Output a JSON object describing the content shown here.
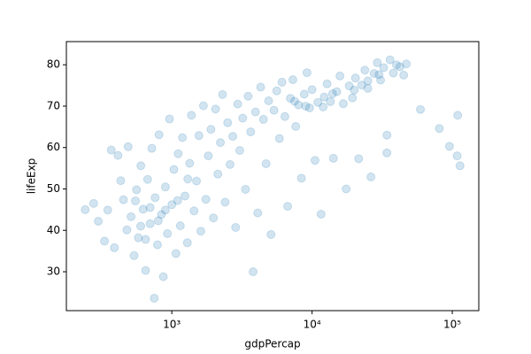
{
  "chart_data": {
    "type": "scatter",
    "x_label": "gdpPercap",
    "y_label": "lifeExp",
    "color": "#1f77b4",
    "opacity": 0.2,
    "xscale": "log",
    "xlim": [
      177,
      154500
    ],
    "ylim": [
      20.6,
      85.6
    ],
    "xticks": [
      {
        "value": 1000,
        "label": "10³"
      },
      {
        "value": 10000,
        "label": "10⁴"
      },
      {
        "value": 100000,
        "label": "10⁵"
      }
    ],
    "yticks": [
      30,
      40,
      50,
      60,
      70,
      80
    ],
    "x": [
      241,
      277,
      299,
      331,
      349,
      370,
      389,
      413,
      432,
      452,
      478,
      488,
      512,
      538,
      560,
      577,
      601,
      624,
      650,
      672,
      700,
      720,
      749,
      760,
      790,
      810,
      843,
      870,
      900,
      930,
      962,
      1000,
      1035,
      1070,
      1110,
      1150,
      1190,
      1240,
      1290,
      1340,
      1380,
      1440,
      1500,
      1560,
      1610,
      1680,
      1750,
      1820,
      1900,
      1980,
      2050,
      2130,
      2220,
      2300,
      2400,
      2500,
      2600,
      2720,
      2850,
      2950,
      3050,
      3200,
      3350,
      3500,
      3650,
      3800,
      3950,
      4100,
      4300,
      4500,
      4700,
      4900,
      5100,
      5350,
      5600,
      5850,
      6100,
      6400,
      6700,
      7000,
      7300,
      7650,
      8000,
      8400,
      8800,
      9200,
      9600,
      10000,
      10500,
      11000,
      11600,
      12200,
      12800,
      13500,
      14200,
      15000,
      15800,
      16700,
      17500,
      18400,
      19400,
      20400,
      21500,
      22600,
      23800,
      25000,
      26300,
      27700,
      29200,
      30800,
      32400,
      34200,
      34167,
      36000,
      38000,
      40000,
      42300,
      45000,
      47000,
      59265,
      80894,
      95458,
      108382,
      109347,
      113523,
      600,
      700,
      800,
      900,
      1100,
      650,
      550,
      1300,
      7500,
      9000,
      12000,
      14000,
      20000,
      25000,
      30000
    ],
    "values": [
      45.0,
      46.5,
      42.2,
      37.4,
      44.9,
      59.4,
      35.8,
      58.1,
      52.0,
      47.4,
      40.1,
      60.2,
      43.3,
      33.9,
      49.8,
      38.2,
      55.6,
      45.1,
      30.3,
      52.3,
      41.6,
      59.8,
      23.6,
      47.9,
      36.5,
      63.1,
      43.8,
      28.8,
      50.5,
      39.2,
      66.9,
      46.2,
      54.7,
      34.4,
      58.5,
      41.1,
      62.4,
      48.3,
      37.0,
      56.2,
      67.8,
      44.7,
      51.9,
      62.9,
      39.8,
      70.1,
      47.5,
      58.0,
      64.4,
      43.0,
      69.3,
      53.6,
      61.2,
      72.8,
      46.8,
      66.0,
      55.9,
      62.7,
      40.7,
      70.5,
      59.3,
      67.1,
      49.9,
      72.4,
      63.8,
      30.0,
      68.6,
      44.2,
      74.6,
      66.8,
      56.1,
      71.3,
      39.0,
      69.0,
      73.7,
      62.2,
      75.8,
      67.5,
      45.8,
      71.9,
      76.4,
      65.1,
      70.3,
      52.6,
      72.9,
      78.1,
      69.6,
      74.0,
      56.9,
      70.9,
      43.9,
      72.2,
      75.4,
      71.1,
      57.4,
      73.5,
      77.3,
      70.6,
      50.0,
      74.9,
      72.0,
      76.8,
      57.3,
      75.1,
      78.7,
      74.3,
      52.9,
      77.9,
      80.5,
      76.3,
      79.3,
      63.0,
      58.7,
      81.2,
      78.0,
      80.0,
      79.5,
      77.5,
      80.2,
      69.2,
      64.6,
      60.3,
      58.0,
      67.8,
      55.6,
      41.0,
      45.5,
      42.3,
      44.9,
      47.2,
      37.8,
      47.1,
      52.4,
      71.2,
      70.0,
      69.8,
      73.0,
      73.9,
      76.1,
      77.6
    ]
  }
}
